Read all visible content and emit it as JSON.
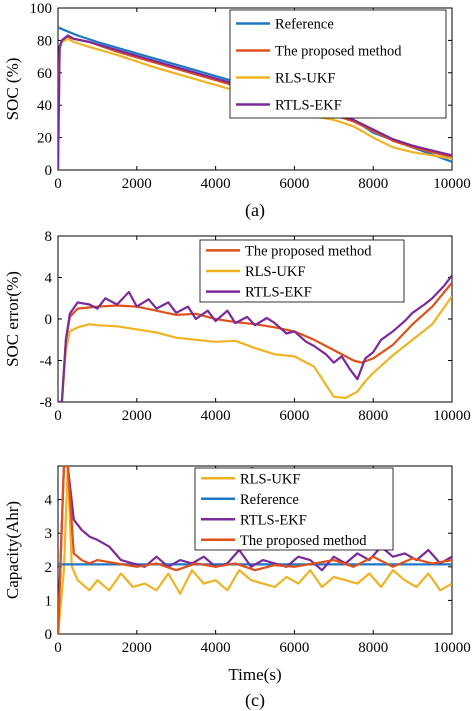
{
  "colors": {
    "reference": "#1f77c4",
    "proposed": "#e0501a",
    "rls_ukf": "#f0b323",
    "rtls_ekf": "#7b2a9a"
  },
  "chart_data": [
    {
      "type": "line",
      "caption": "(a)",
      "ylabel": "SOC (%)",
      "xlabel": "",
      "xlim": [
        0,
        10000
      ],
      "ylim": [
        0,
        100
      ],
      "xticks": [
        "0",
        "2000",
        "4000",
        "6000",
        "8000",
        "10000"
      ],
      "yticks": [
        "0",
        "20",
        "40",
        "60",
        "80",
        "100"
      ],
      "legend": [
        "Reference",
        "The proposed method",
        "RLS-UKF",
        "RTLS-EKF"
      ],
      "series": [
        {
          "name": "Reference",
          "key": "reference",
          "x": [
            0,
            200,
            500,
            1000,
            2000,
            3000,
            4000,
            5000,
            6000,
            7000,
            7500,
            8000,
            9000,
            10000
          ],
          "y": [
            88,
            86,
            83,
            79,
            72,
            65,
            58,
            51,
            44,
            36,
            31,
            23,
            14,
            5
          ]
        },
        {
          "name": "The proposed method",
          "key": "proposed",
          "x": [
            0,
            40,
            100,
            250,
            400,
            800,
            1500,
            2500,
            3500,
            4500,
            5500,
            6500,
            7500,
            8000,
            8500,
            9000,
            9500,
            10000
          ],
          "y": [
            0,
            75,
            79,
            82,
            81,
            79,
            73,
            66,
            59,
            52,
            45,
            38,
            30,
            24,
            18,
            14,
            11,
            8
          ]
        },
        {
          "name": "RLS-UKF",
          "key": "rls_ukf",
          "x": [
            0,
            40,
            100,
            250,
            400,
            800,
            1500,
            2500,
            3500,
            4500,
            5000,
            5500,
            6000,
            6500,
            7000,
            7500,
            8000,
            8500,
            9000,
            9500,
            10000
          ],
          "y": [
            0,
            74,
            79,
            81,
            79,
            76,
            71,
            63,
            56,
            49,
            45,
            39,
            36,
            33,
            31,
            27,
            20,
            14,
            11,
            9,
            7
          ]
        },
        {
          "name": "RTLS-EKF",
          "key": "rtls_ekf",
          "x": [
            0,
            40,
            100,
            250,
            400,
            800,
            1500,
            2500,
            3500,
            4500,
            5500,
            6500,
            7500,
            8000,
            8500,
            9000,
            9500,
            10000
          ],
          "y": [
            0,
            76,
            80,
            83,
            81,
            79,
            74,
            67,
            60,
            53,
            46,
            39,
            31,
            25,
            19,
            15,
            12,
            9
          ]
        }
      ]
    },
    {
      "type": "line",
      "caption": "(b)",
      "ylabel": "SOC error(%)",
      "xlabel": "",
      "xlim": [
        0,
        10000
      ],
      "ylim": [
        -8,
        8
      ],
      "xticks": [
        "0",
        "2000",
        "4000",
        "6000",
        "8000",
        "10000"
      ],
      "yticks": [
        "-8",
        "-4",
        "0",
        "4",
        "8"
      ],
      "legend": [
        "The proposed method",
        "RLS-UKF",
        "RTLS-EKF"
      ],
      "series": [
        {
          "name": "The proposed method",
          "key": "proposed",
          "x": [
            0,
            100,
            200,
            300,
            500,
            1000,
            1500,
            2000,
            2500,
            3000,
            3500,
            4000,
            4500,
            5000,
            5500,
            6000,
            6500,
            7000,
            7500,
            7700,
            8000,
            8500,
            9000,
            9500,
            10000
          ],
          "y": [
            -8,
            -8,
            -2,
            0.2,
            1,
            1.2,
            1.3,
            1.2,
            0.8,
            0.4,
            0.5,
            0,
            -0.3,
            -0.5,
            -0.8,
            -1.2,
            -2,
            -3,
            -4,
            -4.2,
            -3.8,
            -2.5,
            -0.5,
            1.2,
            3.5
          ]
        },
        {
          "name": "RLS-UKF",
          "key": "rls_ukf",
          "x": [
            0,
            100,
            200,
            300,
            500,
            800,
            1000,
            1500,
            2000,
            2500,
            3000,
            3500,
            4000,
            4500,
            5000,
            5500,
            6000,
            6500,
            7000,
            7300,
            7600,
            7800,
            8000,
            8500,
            9000,
            9500,
            10000
          ],
          "y": [
            -8,
            -8,
            -3,
            -1.2,
            -0.8,
            -0.5,
            -0.6,
            -0.7,
            -1,
            -1.3,
            -1.8,
            -2,
            -2.2,
            -2.1,
            -2.8,
            -3.4,
            -3.6,
            -4.6,
            -7.5,
            -7.6,
            -7,
            -6,
            -5.2,
            -3.5,
            -2,
            -0.5,
            2.2
          ]
        },
        {
          "name": "RTLS-EKF",
          "key": "rtls_ekf",
          "x": [
            0,
            100,
            200,
            300,
            500,
            800,
            1000,
            1200,
            1500,
            1800,
            2000,
            2300,
            2500,
            2800,
            3000,
            3300,
            3500,
            3800,
            4000,
            4300,
            4500,
            4800,
            5000,
            5300,
            5500,
            5800,
            6000,
            6300,
            6500,
            6800,
            7000,
            7200,
            7400,
            7600,
            7800,
            8000,
            8200,
            8500,
            8800,
            9000,
            9300,
            9500,
            9800,
            10000
          ],
          "y": [
            -8,
            -8,
            -2,
            0.5,
            1.6,
            1.4,
            1,
            2,
            1.4,
            2.6,
            1.2,
            1.9,
            1,
            1.6,
            0.6,
            1.2,
            0,
            0.8,
            -0.2,
            0.8,
            -0.4,
            0.2,
            -0.6,
            0.1,
            -0.4,
            -1.4,
            -1.2,
            -2.2,
            -2.6,
            -3.4,
            -4.2,
            -3.6,
            -4.8,
            -5.8,
            -3.8,
            -3.2,
            -2,
            -1.2,
            -0.2,
            0.6,
            1.4,
            2,
            3.2,
            4.2
          ]
        }
      ]
    },
    {
      "type": "line",
      "caption": "(c)",
      "ylabel": "Capacity(Ahr)",
      "xlabel": "Time(s)",
      "xlim": [
        0,
        10000
      ],
      "ylim": [
        0,
        5
      ],
      "xticks": [
        "0",
        "2000",
        "4000",
        "6000",
        "8000",
        "10000"
      ],
      "yticks": [
        "0",
        "1",
        "2",
        "3",
        "4"
      ],
      "legend": [
        "RLS-UKF",
        "Reference",
        "RTLS-EKF",
        "The proposed method"
      ],
      "series": [
        {
          "name": "RLS-UKF",
          "key": "rls_ukf",
          "x": [
            0,
            150,
            250,
            350,
            500,
            800,
            1000,
            1300,
            1600,
            1900,
            2200,
            2500,
            2800,
            3100,
            3400,
            3700,
            4000,
            4300,
            4600,
            4900,
            5200,
            5500,
            5800,
            6100,
            6400,
            6700,
            7000,
            7300,
            7600,
            7900,
            8200,
            8500,
            8800,
            9100,
            9400,
            9700,
            10000
          ],
          "y": [
            0,
            1.9,
            5,
            2,
            1.6,
            1.3,
            1.6,
            1.3,
            1.8,
            1.4,
            1.5,
            1.3,
            1.8,
            1.2,
            1.9,
            1.5,
            1.6,
            1.3,
            1.9,
            1.6,
            1.5,
            1.4,
            1.7,
            1.5,
            1.9,
            1.4,
            1.7,
            1.6,
            1.5,
            1.8,
            1.4,
            1.9,
            1.6,
            1.4,
            1.8,
            1.3,
            1.5
          ]
        },
        {
          "name": "Reference",
          "key": "reference",
          "x": [
            0,
            10000
          ],
          "y": [
            2.07,
            2.07
          ]
        },
        {
          "name": "RTLS-EKF",
          "key": "rtls_ekf",
          "x": [
            0,
            150,
            250,
            400,
            600,
            800,
            1000,
            1300,
            1600,
            1900,
            2200,
            2500,
            2800,
            3100,
            3400,
            3700,
            4000,
            4300,
            4600,
            4900,
            5200,
            5500,
            5800,
            6100,
            6400,
            6700,
            7000,
            7300,
            7600,
            7900,
            8200,
            8500,
            8800,
            9100,
            9400,
            9700,
            10000
          ],
          "y": [
            0,
            5,
            5,
            3.4,
            3.1,
            2.9,
            2.8,
            2.6,
            2.2,
            2.1,
            2,
            2.3,
            2,
            2.2,
            2.1,
            2.3,
            2,
            2.1,
            2.5,
            2,
            2.2,
            2.1,
            2,
            2.3,
            2.2,
            1.9,
            2.3,
            2.1,
            2.4,
            2.2,
            2.6,
            2.3,
            2.4,
            2.2,
            2.5,
            2.1,
            2.3
          ]
        },
        {
          "name": "The proposed method",
          "key": "proposed",
          "x": [
            0,
            150,
            250,
            400,
            600,
            800,
            1000,
            1500,
            2000,
            2500,
            3000,
            3500,
            4000,
            4500,
            5000,
            5500,
            6000,
            6500,
            7000,
            7500,
            8000,
            8500,
            9000,
            9500,
            10000
          ],
          "y": [
            0,
            5,
            5,
            2.4,
            2.2,
            2.1,
            2.2,
            2.1,
            2,
            2.1,
            1.9,
            2.1,
            2,
            2.1,
            1.9,
            2.05,
            2,
            2.1,
            2.2,
            2,
            2.3,
            2,
            2.25,
            2.1,
            2.2
          ]
        }
      ]
    }
  ]
}
